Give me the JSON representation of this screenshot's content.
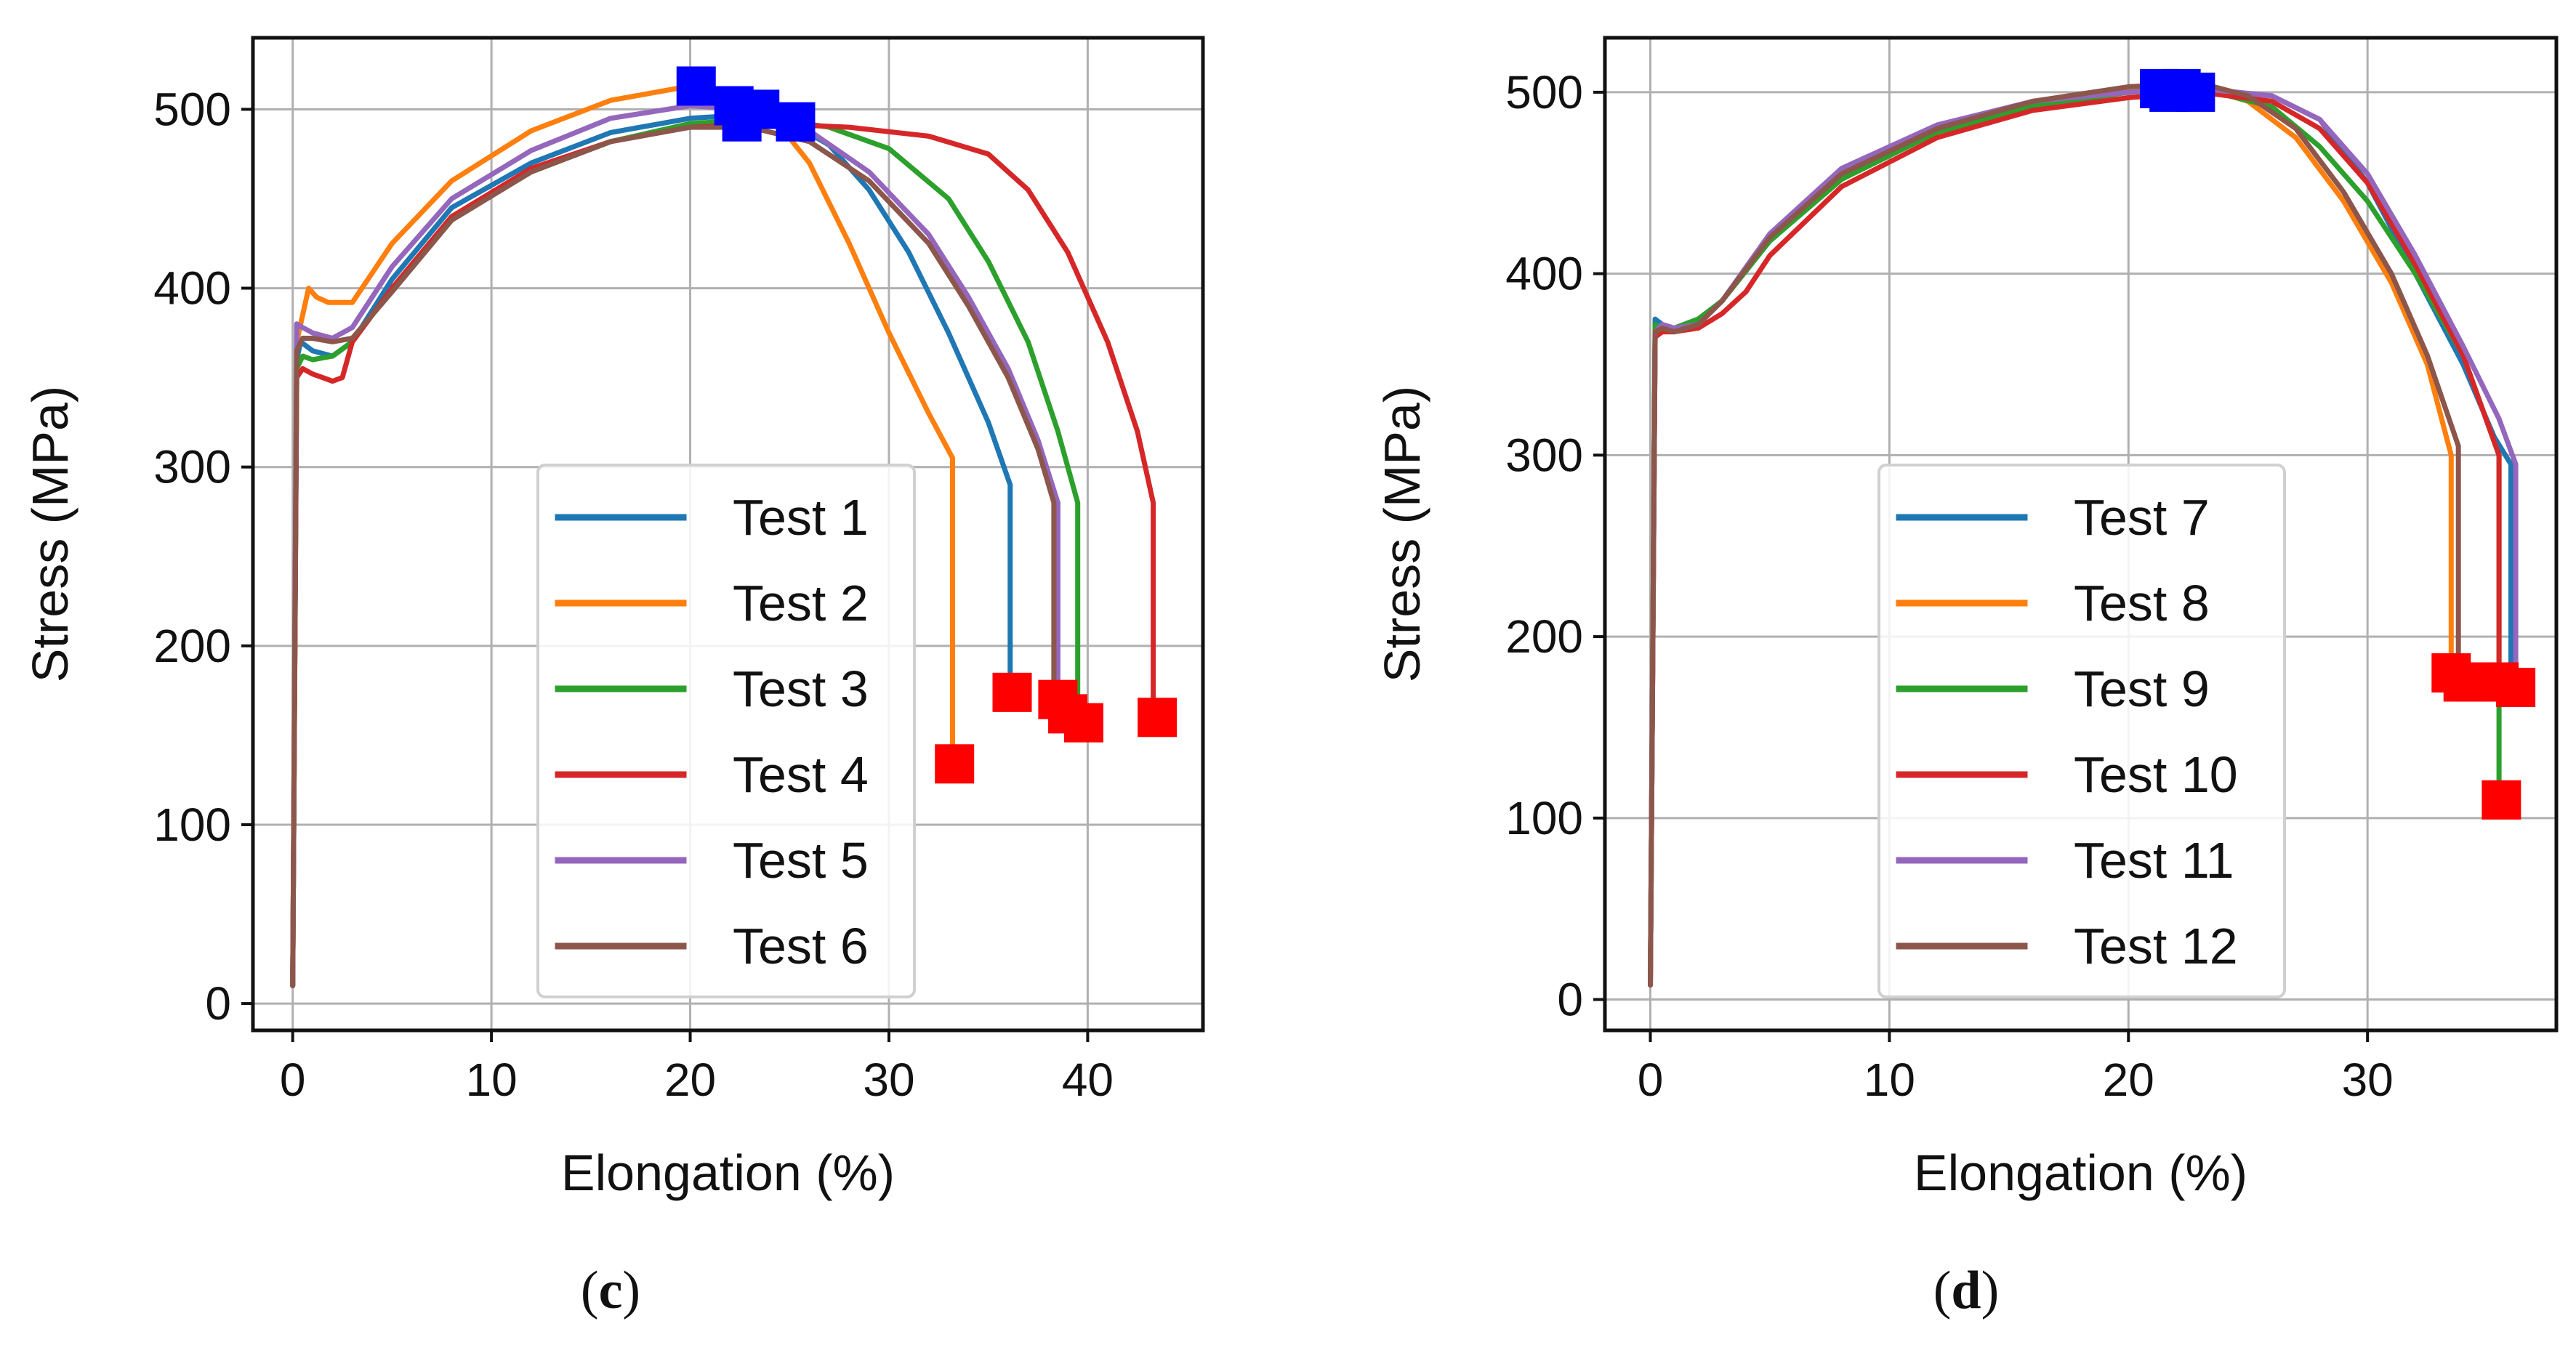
{
  "chart_data": [
    {
      "type": "line",
      "panel_label": "c",
      "xlabel": "Elongation (%)",
      "ylabel": "Stress (MPa)",
      "xlim": [
        -2,
        45.8
      ],
      "ylim": [
        -15,
        540
      ],
      "xticks": [
        0,
        10,
        20,
        30,
        40
      ],
      "yticks": [
        0,
        100,
        200,
        300,
        400,
        500
      ],
      "grid": true,
      "legend_position": "lower-center",
      "series": [
        {
          "name": "Test 1",
          "color": "#1f77b4",
          "x": [
            0,
            0.2,
            0.4,
            1,
            2,
            3,
            5,
            8,
            12,
            16,
            20,
            23,
            25,
            27,
            29,
            31,
            33,
            35,
            36.1,
            36.1
          ],
          "y": [
            10,
            360,
            370,
            365,
            362,
            370,
            405,
            445,
            470,
            487,
            495,
            497,
            493,
            480,
            455,
            420,
            375,
            325,
            290,
            175
          ]
        },
        {
          "name": "Test 2",
          "color": "#ff7f0e",
          "x": [
            0,
            0.2,
            0.5,
            0.8,
            1.2,
            1.8,
            2.5,
            3,
            5,
            8,
            12,
            16,
            20,
            22,
            24,
            26,
            28,
            30,
            32,
            33.2,
            33.2
          ],
          "y": [
            10,
            370,
            385,
            400,
            395,
            392,
            392,
            392,
            425,
            460,
            488,
            505,
            513,
            510,
            498,
            470,
            425,
            375,
            330,
            305,
            135
          ]
        },
        {
          "name": "Test 3",
          "color": "#2ca02c",
          "x": [
            0,
            0.2,
            0.5,
            1,
            2,
            3,
            5,
            8,
            12,
            16,
            20,
            24,
            27,
            30,
            33,
            35,
            37,
            38.5,
            39.5,
            39.5
          ],
          "y": [
            10,
            355,
            362,
            360,
            362,
            370,
            400,
            440,
            465,
            482,
            492,
            495,
            490,
            478,
            450,
            415,
            370,
            320,
            280,
            160
          ]
        },
        {
          "name": "Test 4",
          "color": "#d62728",
          "x": [
            0,
            0.2,
            0.5,
            1,
            1.5,
            2,
            2.5,
            3,
            5,
            8,
            12,
            16,
            20,
            24,
            28,
            32,
            35,
            37,
            39,
            41,
            42.5,
            43.3,
            43.3
          ],
          "y": [
            10,
            350,
            355,
            352,
            350,
            348,
            350,
            370,
            400,
            440,
            467,
            482,
            490,
            492,
            490,
            485,
            475,
            455,
            420,
            370,
            320,
            280,
            160
          ]
        },
        {
          "name": "Test 5",
          "color": "#9467bd",
          "x": [
            0,
            0.2,
            0.5,
            1,
            2,
            3,
            5,
            8,
            12,
            16,
            20,
            23,
            26,
            29,
            32,
            34,
            36,
            37.5,
            38.5,
            38.5
          ],
          "y": [
            10,
            380,
            378,
            375,
            372,
            378,
            412,
            450,
            477,
            495,
            502,
            500,
            488,
            465,
            430,
            395,
            355,
            315,
            280,
            165
          ]
        },
        {
          "name": "Test 6",
          "color": "#8c564b",
          "x": [
            0,
            0.2,
            0.5,
            1,
            2,
            3,
            5,
            8,
            12,
            16,
            20,
            23,
            26,
            29,
            32,
            34,
            36,
            37.5,
            38.3,
            38.3
          ],
          "y": [
            10,
            365,
            372,
            372,
            370,
            372,
            398,
            438,
            465,
            482,
            490,
            490,
            482,
            460,
            425,
            390,
            350,
            310,
            280,
            170
          ]
        }
      ],
      "ultimate_markers": {
        "color": "#0000ff",
        "x": [
          20.3,
          22.2,
          22.6,
          23.5,
          25.3
        ],
        "y": [
          513,
          502,
          493,
          500,
          493
        ]
      },
      "fracture_markers": {
        "color": "#ff0000",
        "x": [
          33.3,
          36.2,
          38.5,
          39,
          39.8,
          43.5
        ],
        "y": [
          134,
          174,
          170,
          162,
          157,
          160
        ]
      }
    },
    {
      "type": "line",
      "panel_label": "d",
      "xlabel": "Elongation (%)",
      "ylabel": "Stress (MPa)",
      "xlim": [
        -1.9,
        37.9
      ],
      "ylim": [
        -17,
        530
      ],
      "xticks": [
        0,
        10,
        20,
        30
      ],
      "yticks": [
        0,
        100,
        200,
        300,
        400,
        500
      ],
      "grid": true,
      "legend_position": "lower-center",
      "series": [
        {
          "name": "Test 7",
          "color": "#1f77b4",
          "x": [
            0,
            0.2,
            0.5,
            1,
            2,
            3,
            5,
            8,
            12,
            16,
            20,
            23,
            26,
            28,
            30,
            32,
            34,
            35.3,
            36,
            36
          ],
          "y": [
            8,
            375,
            372,
            370,
            375,
            385,
            420,
            455,
            480,
            493,
            500,
            502,
            498,
            485,
            450,
            400,
            350,
            310,
            295,
            175
          ]
        },
        {
          "name": "Test 8",
          "color": "#ff7f0e",
          "x": [
            0,
            0.2,
            0.5,
            1,
            2,
            3,
            5,
            8,
            12,
            16,
            20,
            23,
            25,
            27,
            29,
            31,
            32.5,
            33.5,
            33.5
          ],
          "y": [
            8,
            370,
            368,
            368,
            372,
            385,
            420,
            455,
            480,
            495,
            502,
            503,
            495,
            475,
            440,
            395,
            350,
            300,
            180
          ]
        },
        {
          "name": "Test 9",
          "color": "#2ca02c",
          "x": [
            0,
            0.2,
            0.5,
            1,
            2,
            3,
            5,
            8,
            12,
            16,
            20,
            23,
            26,
            28,
            30,
            32,
            34,
            35.5,
            35.5
          ],
          "y": [
            8,
            372,
            370,
            370,
            375,
            385,
            418,
            452,
            478,
            492,
            500,
            502,
            492,
            470,
            440,
            400,
            355,
            300,
            110
          ]
        },
        {
          "name": "Test 10",
          "color": "#d62728",
          "x": [
            0,
            0.2,
            0.5,
            1,
            2,
            3,
            4,
            5,
            8,
            12,
            16,
            20,
            23,
            26,
            28,
            30,
            32,
            34,
            35.5,
            35.5
          ],
          "y": [
            8,
            365,
            368,
            368,
            370,
            378,
            390,
            410,
            448,
            475,
            490,
            497,
            500,
            495,
            480,
            450,
            405,
            355,
            300,
            175
          ]
        },
        {
          "name": "Test 11",
          "color": "#9467bd",
          "x": [
            0,
            0.2,
            0.5,
            1,
            2,
            3,
            5,
            8,
            12,
            16,
            20,
            23,
            26,
            28,
            30,
            32,
            34,
            35.5,
            36.2,
            36.2
          ],
          "y": [
            8,
            368,
            372,
            370,
            372,
            385,
            422,
            458,
            482,
            495,
            500,
            502,
            498,
            485,
            455,
            410,
            360,
            320,
            295,
            172
          ]
        },
        {
          "name": "Test 12",
          "color": "#8c564b",
          "x": [
            0,
            0.2,
            0.5,
            1,
            2,
            3,
            5,
            8,
            12,
            16,
            20,
            23,
            25,
            27,
            29,
            31,
            32.5,
            33.8,
            33.8
          ],
          "y": [
            8,
            368,
            370,
            368,
            372,
            385,
            420,
            455,
            480,
            495,
            503,
            505,
            498,
            480,
            445,
            400,
            355,
            305,
            180
          ]
        }
      ],
      "ultimate_markers": {
        "color": "#0000ff",
        "x": [
          21.3,
          21.7,
          22.2,
          22.8
        ],
        "y": [
          502,
          500,
          502,
          500
        ]
      },
      "fracture_markers": {
        "color": "#ff0000",
        "x": [
          33.5,
          34,
          34.5,
          35.5,
          36.2,
          35.6
        ],
        "y": [
          180,
          175,
          175,
          175,
          172,
          110
        ]
      }
    }
  ]
}
